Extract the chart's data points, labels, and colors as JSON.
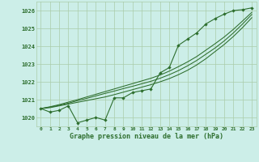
{
  "background_color": "#cceee8",
  "grid_color": "#aaccaa",
  "line_color_main": "#2d6e2d",
  "title": "Graphe pression niveau de la mer (hPa)",
  "ylim": [
    1019.5,
    1026.5
  ],
  "xlim": [
    -0.5,
    23.5
  ],
  "x_ticks": [
    0,
    1,
    2,
    3,
    4,
    5,
    6,
    7,
    8,
    9,
    10,
    11,
    12,
    13,
    14,
    15,
    16,
    17,
    18,
    19,
    20,
    21,
    22,
    23
  ],
  "y_ticks": [
    1020,
    1021,
    1022,
    1023,
    1024,
    1025,
    1026
  ],
  "series1": [
    1020.5,
    1020.3,
    1020.4,
    1020.65,
    1019.7,
    1019.85,
    1020.0,
    1019.85,
    1021.1,
    1021.1,
    1021.4,
    1021.5,
    1021.6,
    1022.5,
    1022.8,
    1024.05,
    1024.4,
    1024.75,
    1025.25,
    1025.55,
    1025.8,
    1026.0,
    1026.05,
    1026.15
  ],
  "series2": [
    1020.5,
    1020.55,
    1020.65,
    1020.75,
    1020.85,
    1020.95,
    1021.05,
    1021.15,
    1021.28,
    1021.42,
    1021.56,
    1021.7,
    1021.84,
    1022.0,
    1022.18,
    1022.4,
    1022.65,
    1022.95,
    1023.3,
    1023.7,
    1024.1,
    1024.55,
    1025.05,
    1025.6
  ],
  "series3": [
    1020.5,
    1020.58,
    1020.68,
    1020.8,
    1020.94,
    1021.07,
    1021.21,
    1021.35,
    1021.48,
    1021.62,
    1021.75,
    1021.89,
    1022.03,
    1022.2,
    1022.4,
    1022.63,
    1022.9,
    1023.2,
    1023.55,
    1023.9,
    1024.3,
    1024.75,
    1025.25,
    1025.78
  ],
  "series4": [
    1020.5,
    1020.6,
    1020.72,
    1020.86,
    1021.0,
    1021.15,
    1021.3,
    1021.45,
    1021.6,
    1021.75,
    1021.9,
    1022.05,
    1022.2,
    1022.38,
    1022.6,
    1022.85,
    1023.12,
    1023.42,
    1023.78,
    1024.14,
    1024.52,
    1024.95,
    1025.42,
    1025.9
  ]
}
